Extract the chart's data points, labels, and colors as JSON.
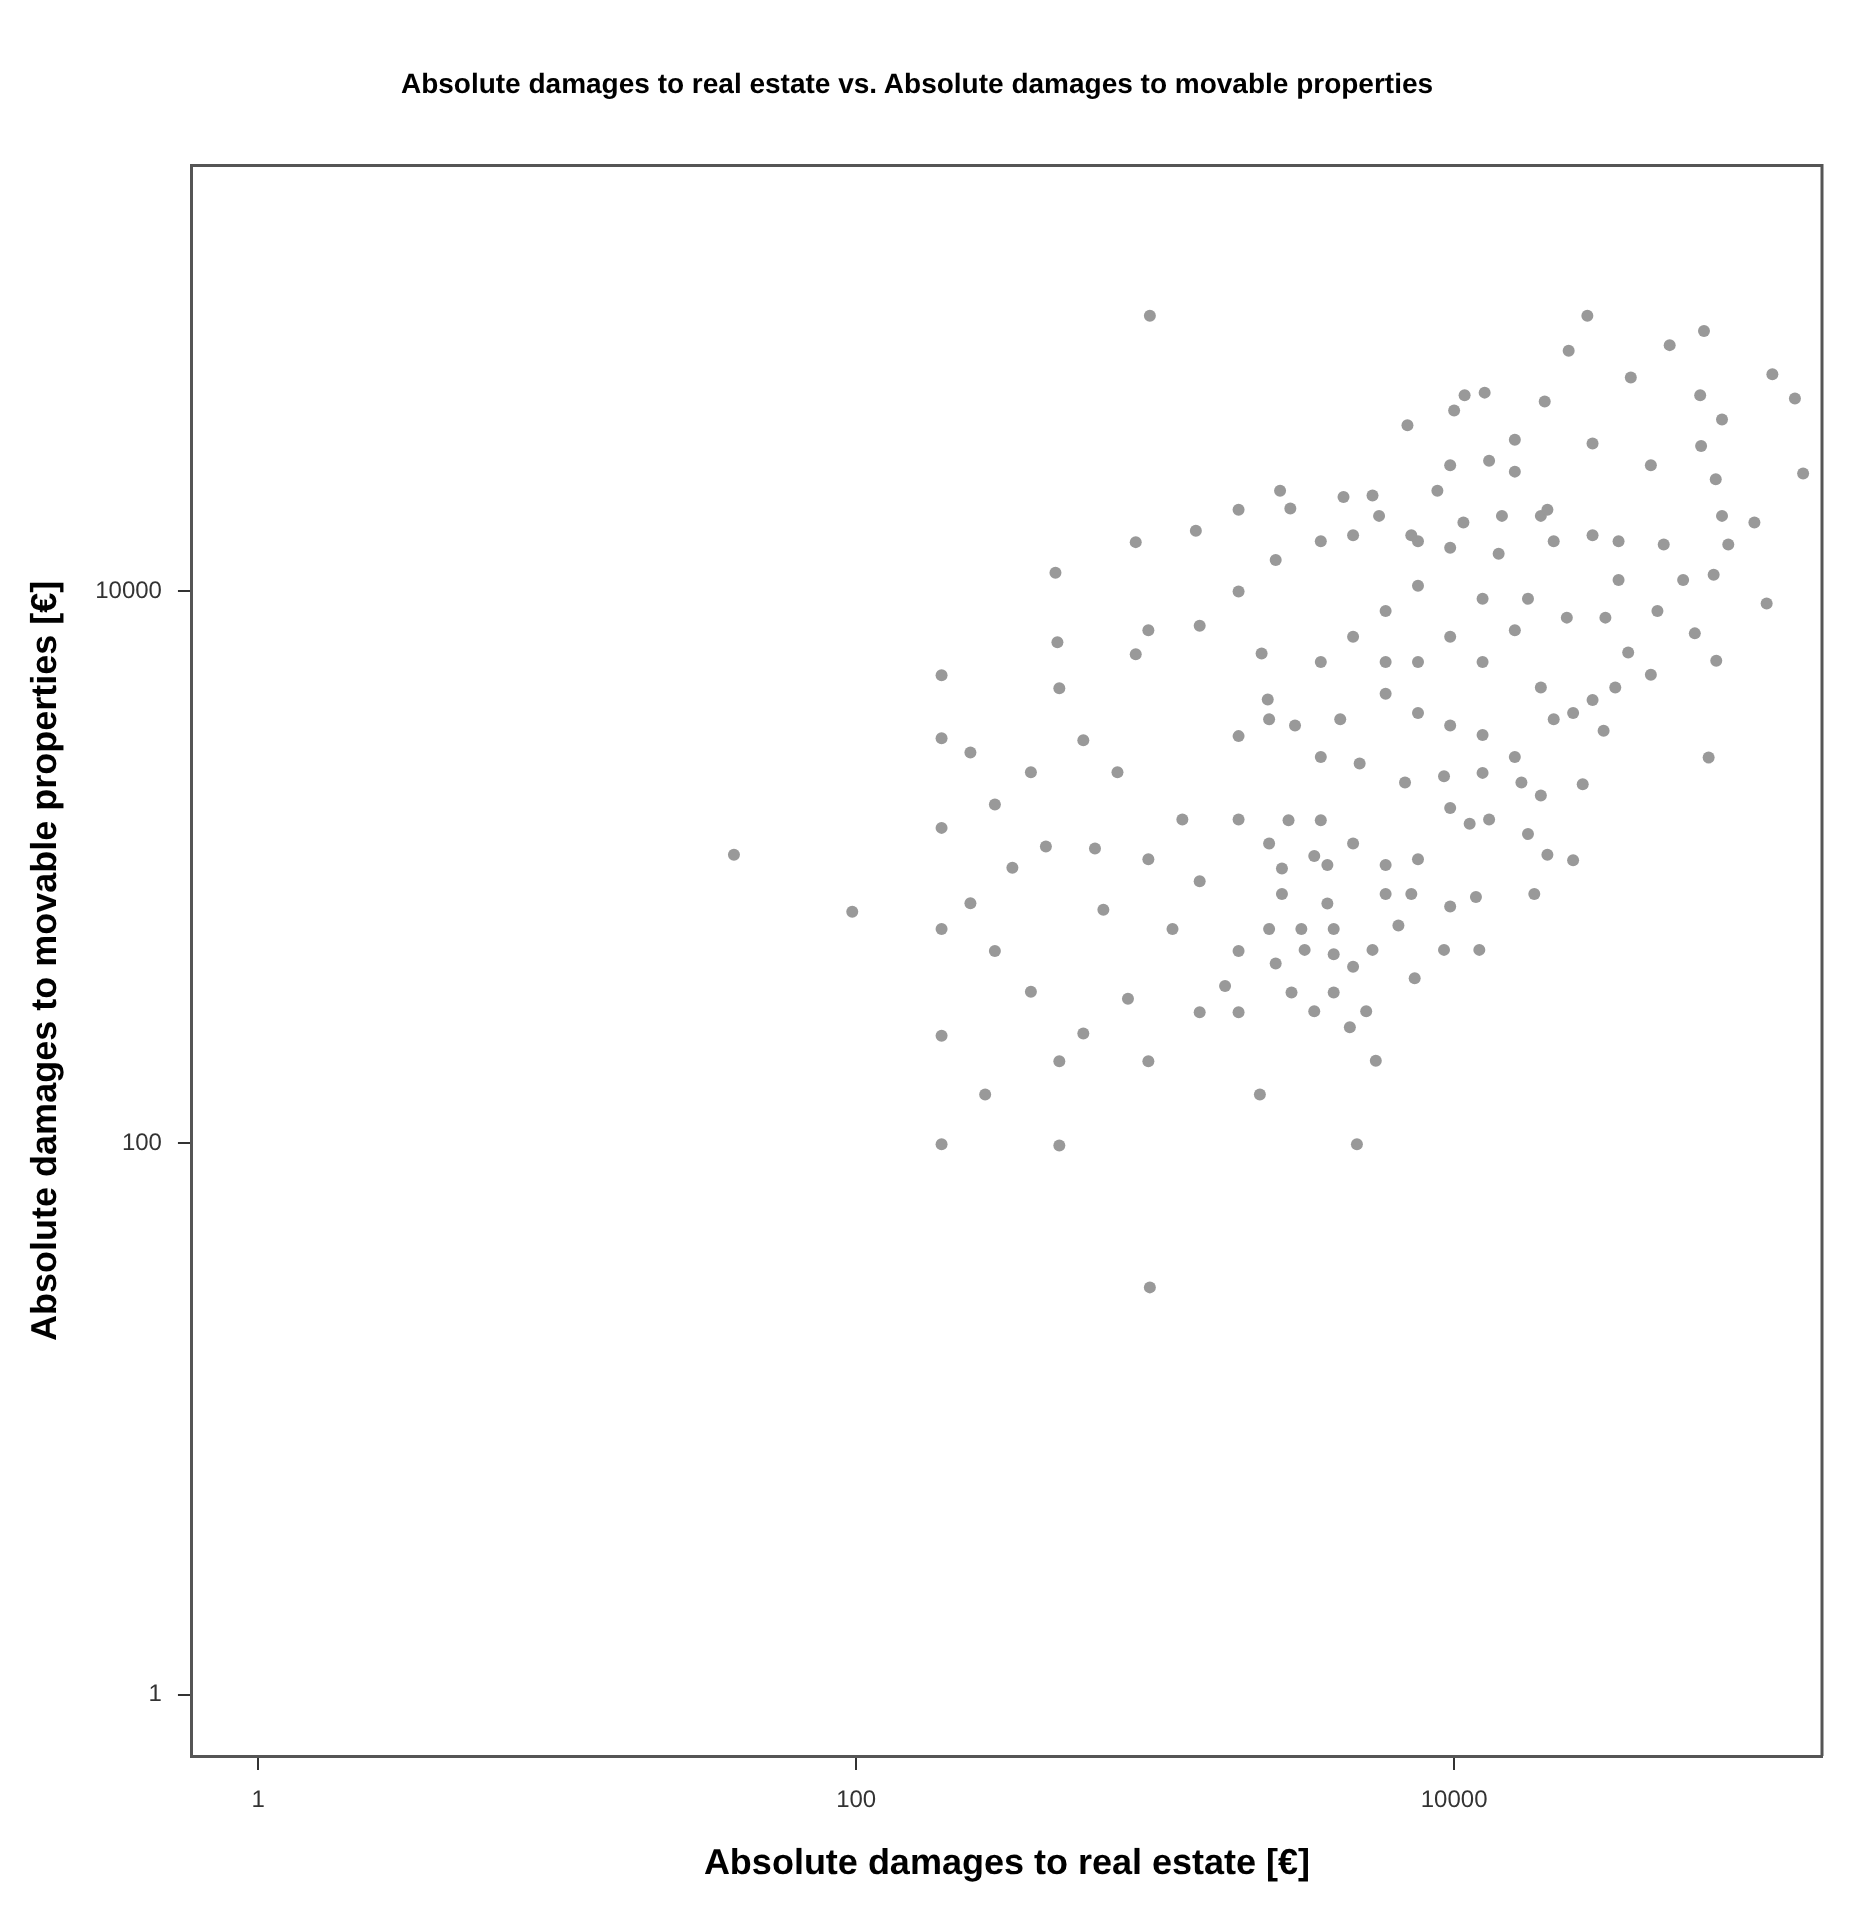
{
  "chart_data": {
    "type": "scatter",
    "title": "Absolute damages to real estate vs. Absolute damages to movable properties",
    "xlabel": "Absolute damages to real estate [€]",
    "ylabel": "Absolute damages to movable properties [€]",
    "log": "xy",
    "grid": false,
    "legend": false,
    "marker": "circle",
    "xlim": [
      0.6,
      170000
    ],
    "xticks": [
      1,
      100,
      10000
    ],
    "ylim": [
      0.63,
      350000
    ],
    "yticks": [
      1,
      100,
      10000
    ],
    "series": [
      {
        "color": "#999999",
        "x": [
          39,
          97,
          960,
          960,
          193,
          270,
          2240,
          4730,
          193,
          193,
          193,
          71000,
          147000,
          138000,
          116000,
          27900,
          68500,
          111000,
          464,
          471,
          478,
          193,
          193,
          241,
          291,
          241,
          291,
          384,
          478,
          575,
          478,
          575,
          861,
          861,
          1368,
          1901,
          1901,
          949,
          1409,
          748,
          949,
          671,
          811,
          949,
          1409,
          1901,
          1143,
          1901,
          1713,
          1409,
          1901,
          1233,
          1901,
          2380,
          2270,
          629,
          431,
          333,
          384,
          52600,
          24160,
          38990,
          66530,
          10840,
          12650,
          6980,
          10000,
          20090,
          78700,
          101000,
          67000,
          2617,
          2832,
          4266,
          5333,
          9700,
          13090,
          15960,
          29040,
          45500,
          19500,
          14450,
          10740,
          7570,
          5610,
          4592,
          3581,
          2530,
          14090,
          21530,
          29040,
          35480,
          50240,
          82600,
          75000,
          78700,
          58340,
          73800,
          63830,
          75300,
          47860,
          38210,
          34590,
          45500,
          29040,
          25000,
          31620,
          26920,
          25000,
          20510,
          18540,
          19500,
          16790,
          15960,
          21530,
          19500,
          12450,
          9700,
          7570,
          5900,
          4159,
          2936,
          2405,
          3581,
          4830,
          6850,
          9250,
          12450,
          17660,
          13090,
          11270,
          9700,
          7570,
          5900,
          4592,
          3581,
          2793,
          2405,
          2655,
          3405,
          3767,
          11830,
          9700,
          7190,
          5900,
          3767,
          2655,
          2405,
          3083,
          3955,
          6510,
          9250,
          12140,
          5333,
          3955,
          3162,
          2530,
          4592,
          7380,
          2858,
          3955,
          5080,
          4479,
          3405,
          5470,
          15960,
          20510,
          9700,
          7570,
          5900,
          4592,
          3581,
          12450,
          17660,
          23820,
          9700,
          7570,
          5900,
          12450,
          15960,
          32060,
          35480,
          8790,
          7190
        ],
        "values": [
          1110,
          690,
          100000,
          30,
          99,
          150,
          150,
          99,
          4970,
          2940,
          245,
          2500,
          26800,
          50100,
          61300,
          100000,
          88000,
          9040,
          11700,
          6540,
          4460,
          1390,
          598,
          2610,
          1690,
          741,
          497,
          354,
          198,
          250,
          98,
          2890,
          5920,
          15100,
          16600,
          19800,
          10000,
          7240,
          7520,
          2210,
          1070,
          702,
          334,
          198,
          298,
          298,
          598,
          497,
          371,
          891,
          1490,
          1490,
          2990,
          4060,
          5960,
          1170,
          1190,
          996,
          2210,
          78200,
          74600,
          59700,
          51500,
          51500,
          52600,
          40100,
          45300,
          48800,
          42000,
          17800,
          33700,
          23200,
          20000,
          22000,
          22300,
          28700,
          29800,
          35500,
          34400,
          28700,
          18800,
          18800,
          17800,
          15200,
          18800,
          16000,
          15200,
          13000,
          13700,
          15200,
          16000,
          15200,
          14800,
          14800,
          25500,
          18800,
          11000,
          11500,
          7050,
          5610,
          8490,
          6010,
          4490,
          4990,
          4040,
          3630,
          3130,
          2000,
          1060,
          1110,
          801,
          1820,
          2030,
          2510,
          3440,
          4490,
          3020,
          3270,
          3630,
          4260,
          3440,
          3270,
          3440,
          2510,
          2380,
          2030,
          2140,
          2200,
          1320,
          1490,
          1440,
          1640,
          1070,
          1020,
          1220,
          1480,
          1480,
          1220,
          991,
          1100,
          1020,
          781,
          721,
          801,
          801,
          740,
          801,
          598,
          598,
          598,
          615,
          502,
          502,
          502,
          484,
          502,
          448,
          436,
          396,
          352,
          352,
          301,
          263,
          301,
          199,
          27200,
          19800,
          14400,
          10500,
          8490,
          6850,
          5550,
          9420,
          9420,
          8040,
          6850,
          5550,
          5550,
          5550,
          7240,
          8040,
          11000,
          23200,
          16000
        ]
      }
    ]
  }
}
